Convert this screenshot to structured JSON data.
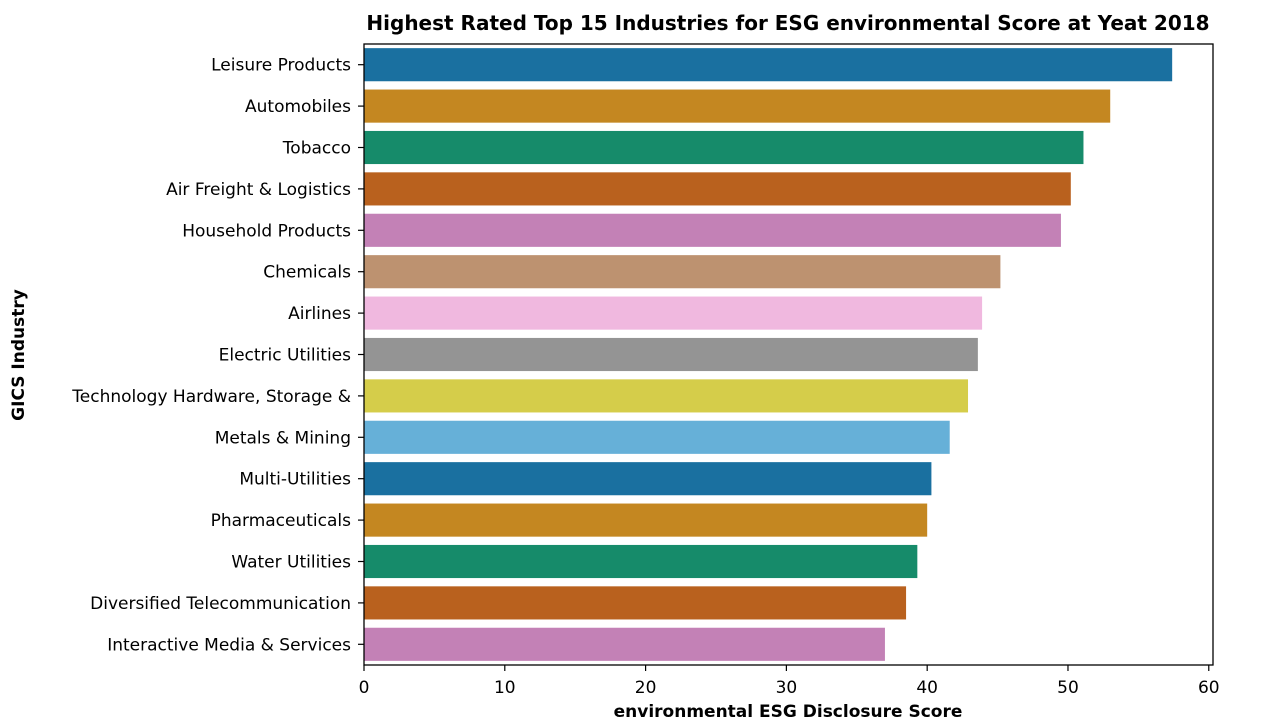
{
  "chart_data": {
    "type": "bar",
    "orientation": "horizontal",
    "title": "Highest Rated Top 15 Industries for ESG environmental Score at Yeat 2018",
    "xlabel": "environmental ESG Disclosure Score",
    "ylabel": "GICS Industry",
    "xlim": [
      0,
      60.3
    ],
    "x_ticks": [
      "0",
      "10",
      "20",
      "30",
      "40",
      "50",
      "60"
    ],
    "grid": false,
    "categories": [
      "Leisure Products",
      "Automobiles",
      "Tobacco",
      "Air Freight & Logistics",
      "Household Products",
      "Chemicals",
      "Airlines",
      "Electric Utilities",
      "Technology Hardware, Storage &",
      "Metals & Mining",
      "Multi-Utilities",
      "Pharmaceuticals",
      "Water Utilities",
      "Diversified Telecommunication",
      "Interactive Media & Services"
    ],
    "values": [
      57.4,
      53.0,
      51.1,
      50.2,
      49.5,
      45.2,
      43.9,
      43.6,
      42.9,
      41.6,
      40.3,
      40.0,
      39.3,
      38.5,
      37.0
    ],
    "colors": [
      "#1a70a0",
      "#c48721",
      "#168b6a",
      "#b9611e",
      "#c381b6",
      "#bd9270",
      "#f0b8df",
      "#949494",
      "#d5cd4a",
      "#66b0d8",
      "#1a70a0",
      "#c48721",
      "#168b6a",
      "#b9611e",
      "#c381b6"
    ]
  }
}
